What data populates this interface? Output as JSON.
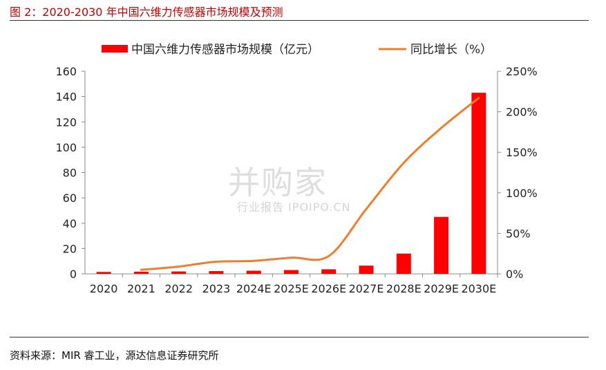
{
  "header": {
    "title": "图 2：2020-2030 年中国六维力传感器市场规模及预测"
  },
  "footer": {
    "source": "资料来源：MIR 睿工业，源达信息证券研究所"
  },
  "watermark": {
    "main": "并购家",
    "sub": "行业报告 IPOIPO.CN"
  },
  "colors": {
    "bar": "#ff0000",
    "line": "#ed7d31",
    "title": "#c00000"
  },
  "chart_data": {
    "type": "bar",
    "categories": [
      "2020",
      "2021",
      "2022",
      "2023",
      "2024E",
      "2025E",
      "2026E",
      "2027E",
      "2028E",
      "2029E",
      "2030E"
    ],
    "series": [
      {
        "name": "中国六维力传感器市场规模（亿元）",
        "type": "bar",
        "axis": "left",
        "values": [
          1.5,
          1.7,
          1.9,
          2.2,
          2.5,
          3.0,
          3.6,
          6.5,
          16.0,
          45.0,
          143.0
        ]
      },
      {
        "name": "同比增长（%）",
        "type": "line",
        "axis": "right",
        "values": [
          null,
          5,
          9,
          15,
          16,
          20,
          22,
          80,
          137,
          180,
          217
        ]
      }
    ],
    "y_left": {
      "min": 0,
      "max": 160,
      "ticks": [
        "0",
        "20",
        "40",
        "60",
        "80",
        "100",
        "120",
        "140",
        "160"
      ]
    },
    "y_right": {
      "min": 0,
      "max": 250,
      "ticks": [
        "0%",
        "50%",
        "100%",
        "150%",
        "200%",
        "250%"
      ]
    },
    "legend_position": "top",
    "grid": false
  }
}
